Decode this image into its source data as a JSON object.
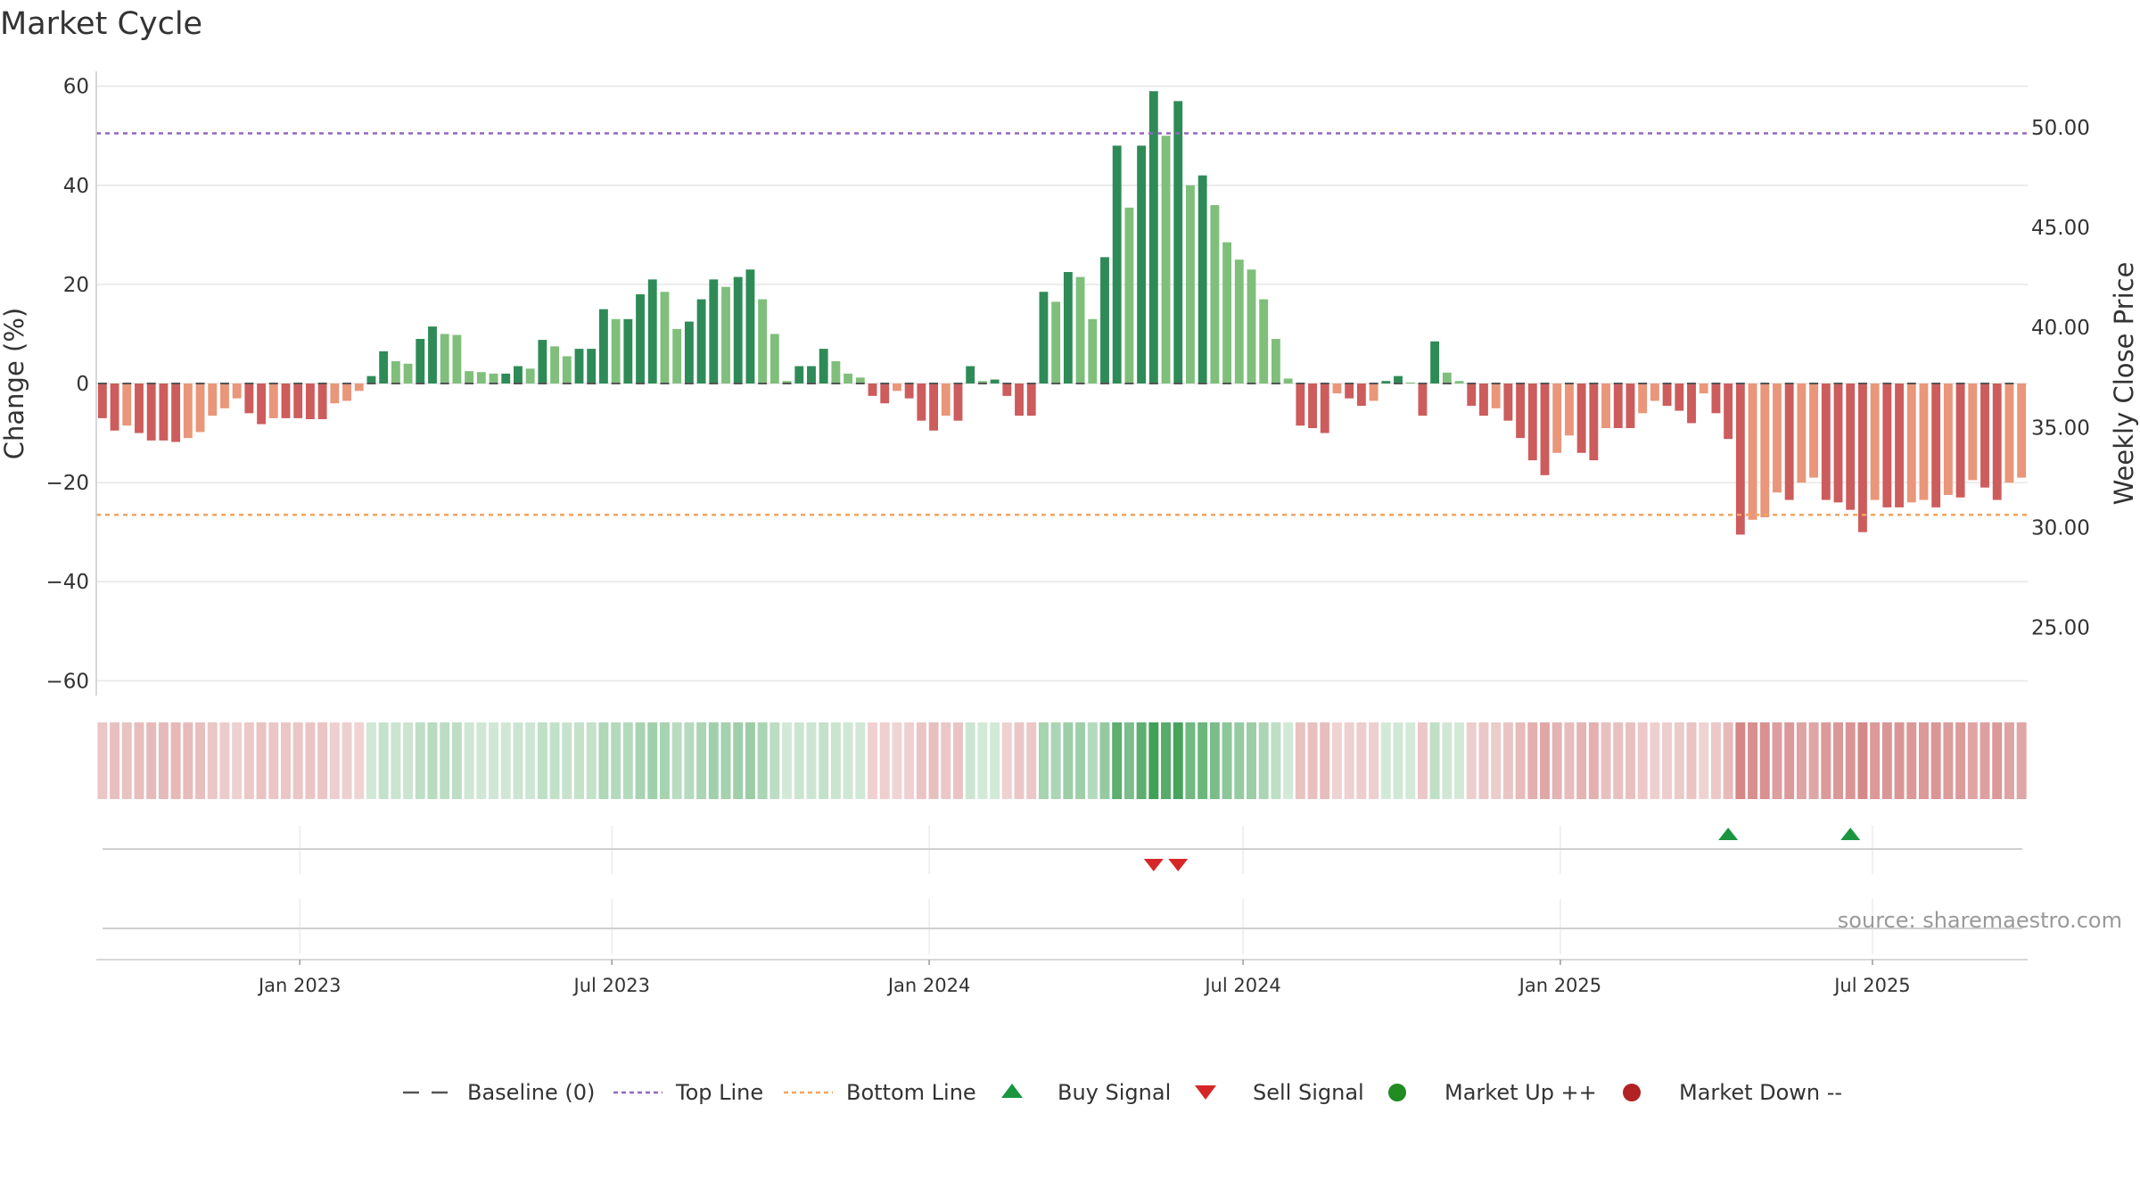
{
  "chart_data": {
    "type": "bar",
    "title": "Market Cycle",
    "ylabel": "Change (%)",
    "y2label": "Weekly Close Price",
    "ylim": [
      -63,
      63
    ],
    "y2lim": [
      21.6,
      52.8
    ],
    "yticks": [
      60,
      40,
      20,
      0,
      -20,
      -40,
      -60
    ],
    "ytick_labels": [
      "60",
      "40",
      "20",
      "0",
      "−20",
      "−40",
      "−60"
    ],
    "y2ticks": [
      50,
      45,
      40,
      35,
      30,
      25
    ],
    "y2tick_labels": [
      "50.00",
      "45.00",
      "40.00",
      "35.00",
      "30.00",
      "25.00"
    ],
    "x_start": "2022-09-05",
    "x_end": "2025-09-29",
    "xticks": [
      "2023-01-01",
      "2023-07-01",
      "2024-01-01",
      "2024-07-01",
      "2025-01-01",
      "2025-07-01"
    ],
    "xtick_labels": [
      "Jan 2023",
      "Jul 2023",
      "Jan 2024",
      "Jul 2024",
      "Jan 2025",
      "Jul 2025"
    ],
    "top_line": 50.5,
    "bottom_line": -26.5,
    "values": [
      -7,
      -9.5,
      -8.5,
      -10,
      -11.5,
      -11.5,
      -11.8,
      -11,
      -9.8,
      -6.5,
      -5,
      -3,
      -6,
      -8.2,
      -7,
      -7,
      -7,
      -7.2,
      -7.2,
      -4,
      -3.5,
      -1.5,
      1.5,
      6.5,
      4.5,
      4,
      9,
      11.5,
      10,
      9.8,
      2.5,
      2.3,
      2,
      2,
      3.5,
      3,
      8.8,
      7.5,
      5.5,
      7,
      7,
      15,
      13,
      13,
      18,
      21,
      18.5,
      11,
      12.5,
      17,
      21,
      19.5,
      21.5,
      23,
      17,
      10,
      0.5,
      3.5,
      3.5,
      7,
      4.5,
      2,
      1.2,
      -2.5,
      -4,
      -1.5,
      -3,
      -7.5,
      -9.5,
      -6.5,
      -7.5,
      3.5,
      0.5,
      0.8,
      -2.5,
      -6.5,
      -6.5,
      18.5,
      16.5,
      22.5,
      21.5,
      13,
      25.5,
      48,
      35.5,
      48,
      59,
      50,
      57,
      40,
      42,
      36,
      28.5,
      25,
      23,
      17,
      9,
      1,
      -8.5,
      -9,
      -10,
      -2,
      -3,
      -4.5,
      -3.5,
      0.5,
      1.5,
      0.2,
      -6.5,
      8.5,
      2.2,
      0.5,
      -4.5,
      -6.5,
      -5,
      -7.5,
      -11,
      -15.5,
      -18.5,
      -14,
      -10.5,
      -14,
      -15.5,
      -9,
      -9,
      -9,
      -6,
      -3.5,
      -4.5,
      -5.5,
      -8,
      -2,
      -6,
      -11.2,
      -30.5,
      -27.5,
      -27,
      -22,
      -23.5,
      -20,
      -19,
      -23.5,
      -24,
      -25.5,
      -30,
      -23.5,
      -25,
      -25,
      -24,
      -23.5,
      -25,
      -22.5,
      -23,
      -19.5,
      -21,
      -23.5,
      -20,
      -19
    ],
    "colors": {
      "up_strong": "#2e8b57",
      "up_light": "#7fbf7b",
      "down_strong": "#cd5c5c",
      "down_light": "#e9967a",
      "top_line": "#9467bd",
      "bottom_line": "#f4a460",
      "buy": "#1a9641",
      "sell": "#d62728",
      "market_up": "#228b22",
      "market_down": "#b22222"
    },
    "buy_signals": [
      133,
      143
    ],
    "sell_signals": [
      86,
      88
    ],
    "legend": [
      "Baseline (0)",
      "Top Line",
      "Bottom Line",
      "Buy Signal",
      "Sell Signal",
      "Market Up ++",
      "Market Down --"
    ],
    "legend_position": "bottom-center",
    "source": "source: sharemaestro.com",
    "grid": true
  }
}
